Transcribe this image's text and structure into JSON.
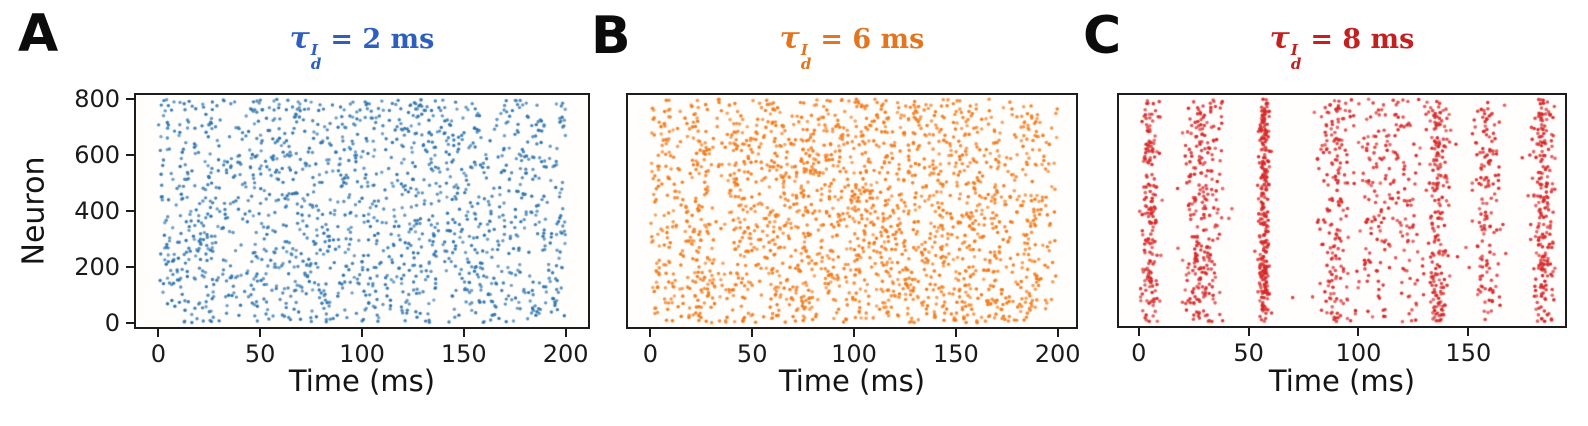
{
  "figure": {
    "ylabel": "Neuron",
    "background": "#ffffff",
    "axis_color": "#1c1c1c"
  },
  "panels": [
    {
      "letter": "A",
      "xlabel": "Time (ms)",
      "title_color": "#2d5fbe",
      "title": {
        "tau": "τ",
        "sup": "I",
        "sub": "d",
        "rhs": "= 2 ms"
      }
    },
    {
      "letter": "B",
      "xlabel": "Time (ms)",
      "title_color": "#e2751f",
      "title": {
        "tau": "τ",
        "sup": "I",
        "sub": "d",
        "rhs": "= 6 ms"
      }
    },
    {
      "letter": "C",
      "xlabel": "Time (ms)",
      "title_color": "#c32020",
      "title": {
        "tau": "τ",
        "sup": "I",
        "sub": "d",
        "rhs": "= 8 ms"
      }
    }
  ],
  "chart_data": [
    {
      "panel": "A",
      "type": "scatter",
      "description": "spike raster, asynchronous irregular firing, uniform scatter",
      "n_neurons": 800,
      "time_range_ms": [
        0,
        200
      ],
      "xlim": [
        -11,
        211
      ],
      "ylim": [
        -15,
        815
      ],
      "xticks": [
        0,
        50,
        100,
        150,
        200
      ],
      "yticks": [
        0,
        200,
        400,
        600,
        800
      ],
      "show_ytick_labels": true,
      "n_points": 1550,
      "dot_color": "#2e74ad",
      "dot_radius": 1.7,
      "pattern": {
        "uniform_weight": 1.0,
        "bands": []
      }
    },
    {
      "panel": "B",
      "type": "scatter",
      "description": "spike raster, weak oscillatory synchrony, diffuse vertical stripes",
      "n_neurons": 800,
      "time_range_ms": [
        0,
        200
      ],
      "xlim": [
        -11,
        209
      ],
      "ylim": [
        -15,
        815
      ],
      "xticks": [
        0,
        50,
        100,
        150,
        200
      ],
      "yticks": [
        0,
        200,
        400,
        600,
        800
      ],
      "show_ytick_labels": false,
      "n_points": 2000,
      "dot_color": "#f07d1e",
      "dot_radius": 1.8,
      "pattern": {
        "uniform_weight": 0.48,
        "bands": [
          [
            7,
            4,
            0.04
          ],
          [
            25,
            4,
            0.04
          ],
          [
            44,
            4,
            0.04
          ],
          [
            62,
            4,
            0.04
          ],
          [
            76,
            3.5,
            0.05
          ],
          [
            90,
            4,
            0.04
          ],
          [
            103,
            3.5,
            0.05
          ],
          [
            116,
            4,
            0.04
          ],
          [
            128,
            4,
            0.04
          ],
          [
            141,
            4,
            0.04
          ],
          [
            155,
            4,
            0.04
          ],
          [
            170,
            4,
            0.04
          ],
          [
            186,
            4,
            0.04
          ]
        ]
      }
    },
    {
      "panel": "C",
      "type": "scatter",
      "description": "spike raster, strong synchronous population bursts, tight vertical bands",
      "n_neurons": 800,
      "time_range_ms": [
        0,
        190
      ],
      "xlim": [
        -9,
        194
      ],
      "ylim": [
        -15,
        815
      ],
      "xticks": [
        0,
        50,
        100,
        150
      ],
      "yticks": [
        0,
        200,
        400,
        600,
        800
      ],
      "show_ytick_labels": false,
      "n_points": 1650,
      "dot_color": "#d62a2a",
      "dot_radius": 1.8,
      "pattern": {
        "uniform_weight": 0.025,
        "bands": [
          [
            5,
            2.0,
            0.11
          ],
          [
            29,
            4.5,
            0.16
          ],
          [
            57,
            1.2,
            0.17
          ],
          [
            89,
            3.5,
            0.12
          ],
          [
            108,
            6.0,
            0.09
          ],
          [
            122,
            4.0,
            0.05
          ],
          [
            136,
            2.5,
            0.12
          ],
          [
            158,
            3.5,
            0.1
          ],
          [
            184,
            2.5,
            0.13
          ]
        ]
      }
    }
  ]
}
